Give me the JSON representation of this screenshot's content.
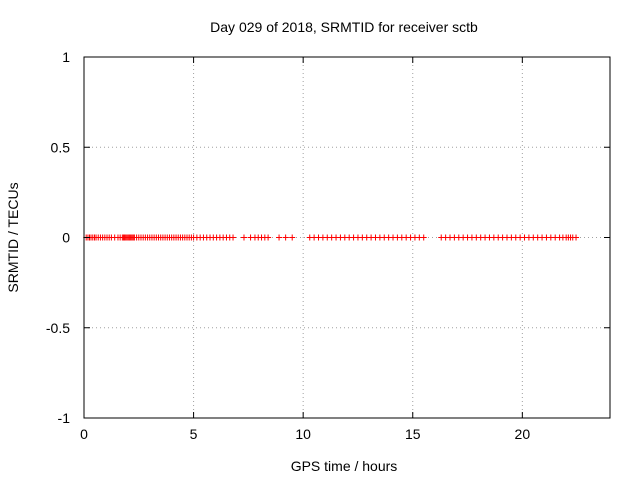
{
  "chart_data": {
    "type": "scatter",
    "title": "Day 029 of 2018, SRMTID for receiver sctb",
    "xlabel": "GPS time / hours",
    "ylabel": "SRMTID / TECUs",
    "xlim": [
      0,
      24
    ],
    "ylim": [
      -1,
      1
    ],
    "xticks": [
      0,
      5,
      10,
      15,
      20
    ],
    "yticks": [
      -1,
      -0.5,
      0,
      0.5,
      1
    ],
    "xtick_labels": [
      "0",
      "5",
      "10",
      "15",
      "20"
    ],
    "ytick_labels": [
      "-1",
      "-0.5",
      "0",
      "0.5",
      "1"
    ],
    "grid": true,
    "marker": "+",
    "color": "#ff0000",
    "series": [
      {
        "name": "SRMTID",
        "x": [
          0.1,
          0.18,
          0.25,
          0.32,
          0.4,
          0.48,
          0.55,
          0.65,
          0.75,
          0.85,
          0.95,
          1.05,
          1.15,
          1.25,
          1.4,
          1.55,
          1.65,
          1.75,
          1.8,
          1.85,
          1.9,
          1.95,
          2.0,
          2.05,
          2.1,
          2.15,
          2.2,
          2.25,
          2.3,
          2.4,
          2.5,
          2.6,
          2.7,
          2.8,
          2.9,
          3.0,
          3.1,
          3.2,
          3.3,
          3.4,
          3.5,
          3.6,
          3.7,
          3.8,
          3.9,
          4.0,
          4.1,
          4.2,
          4.3,
          4.4,
          4.5,
          4.6,
          4.7,
          4.8,
          4.9,
          5.0,
          5.15,
          5.3,
          5.45,
          5.6,
          5.75,
          5.9,
          6.05,
          6.2,
          6.35,
          6.5,
          6.65,
          6.8,
          7.3,
          7.6,
          7.8,
          7.95,
          8.1,
          8.25,
          8.4,
          8.9,
          9.2,
          9.5,
          10.3,
          10.5,
          10.7,
          10.9,
          11.1,
          11.3,
          11.5,
          11.7,
          11.9,
          12.1,
          12.3,
          12.5,
          12.7,
          12.9,
          13.1,
          13.3,
          13.5,
          13.7,
          13.9,
          14.1,
          14.3,
          14.5,
          14.7,
          14.9,
          15.1,
          15.3,
          15.5,
          16.3,
          16.5,
          16.7,
          16.9,
          17.1,
          17.3,
          17.5,
          17.7,
          17.9,
          18.1,
          18.3,
          18.5,
          18.7,
          18.9,
          19.1,
          19.3,
          19.5,
          19.7,
          19.9,
          20.1,
          20.3,
          20.5,
          20.7,
          20.9,
          21.1,
          21.3,
          21.5,
          21.7,
          21.85,
          22.0,
          22.1,
          22.2,
          22.3,
          22.45
        ],
        "y_constant": 0
      }
    ]
  }
}
